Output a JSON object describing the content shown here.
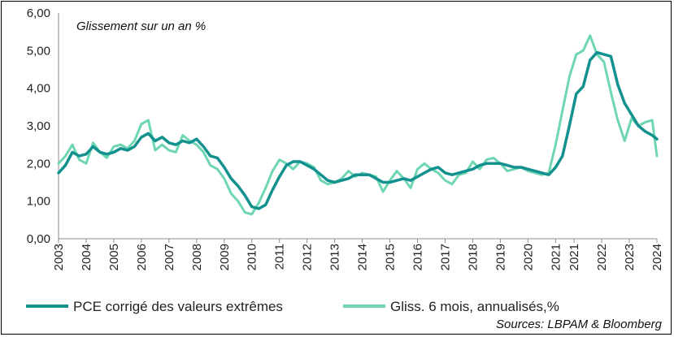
{
  "chart_data": {
    "type": "line",
    "annotation": "Glissement sur un an %",
    "source": "Sources: LBPAM & Bloomberg",
    "ylim": [
      0,
      6
    ],
    "y_ticks": [
      "0,00",
      "1,00",
      "2,00",
      "3,00",
      "4,00",
      "5,00",
      "6,00"
    ],
    "y_tick_values": [
      0,
      1,
      2,
      3,
      4,
      5,
      6
    ],
    "x_range": [
      2003.0,
      2024.67
    ],
    "x_ticks": [
      "2003",
      "2004",
      "2005",
      "2006",
      "2007",
      "2008",
      "2009",
      "2010",
      "2011",
      "2012",
      "2013",
      "2014",
      "2015",
      "2016",
      "2017",
      "2018",
      "2019",
      "2020",
      "2021",
      "2021",
      "2022",
      "2023",
      "2024"
    ],
    "x_tick_values": [
      2003.0,
      2004.0,
      2005.0,
      2006.0,
      2007.0,
      2008.0,
      2009.0,
      2010.0,
      2011.0,
      2012.0,
      2013.0,
      2014.0,
      2015.0,
      2016.0,
      2017.0,
      2018.0,
      2019.0,
      2020.0,
      2021.0,
      2021.67,
      2022.67,
      2023.67,
      2024.67
    ],
    "grid": false,
    "legend_position": "bottom",
    "series": [
      {
        "name": "PCE corrigé des valeurs extrêmes",
        "color": "#13918f",
        "x": [
          2003.0,
          2003.25,
          2003.5,
          2003.75,
          2004.0,
          2004.25,
          2004.5,
          2004.75,
          2005.0,
          2005.25,
          2005.5,
          2005.75,
          2006.0,
          2006.25,
          2006.5,
          2006.75,
          2007.0,
          2007.25,
          2007.5,
          2007.75,
          2008.0,
          2008.25,
          2008.5,
          2008.75,
          2009.0,
          2009.25,
          2009.5,
          2009.75,
          2010.0,
          2010.25,
          2010.5,
          2010.75,
          2011.0,
          2011.25,
          2011.5,
          2011.75,
          2012.0,
          2012.25,
          2012.5,
          2012.75,
          2013.0,
          2013.25,
          2013.5,
          2013.75,
          2014.0,
          2014.25,
          2014.5,
          2014.75,
          2015.0,
          2015.25,
          2015.5,
          2015.75,
          2016.0,
          2016.25,
          2016.5,
          2016.75,
          2017.0,
          2017.25,
          2017.5,
          2017.75,
          2018.0,
          2018.25,
          2018.5,
          2018.75,
          2019.0,
          2019.25,
          2019.5,
          2019.75,
          2020.0,
          2020.25,
          2020.5,
          2020.75,
          2021.0,
          2021.25,
          2021.5,
          2021.75,
          2022.0,
          2022.25,
          2022.5,
          2022.75,
          2023.0,
          2023.25,
          2023.5,
          2023.75,
          2024.0,
          2024.25,
          2024.5,
          2024.67
        ],
        "y": [
          1.75,
          1.95,
          2.3,
          2.2,
          2.25,
          2.45,
          2.3,
          2.25,
          2.3,
          2.4,
          2.35,
          2.45,
          2.7,
          2.8,
          2.6,
          2.7,
          2.55,
          2.5,
          2.6,
          2.55,
          2.65,
          2.45,
          2.2,
          2.15,
          1.9,
          1.6,
          1.4,
          1.15,
          0.85,
          0.8,
          0.9,
          1.3,
          1.65,
          1.95,
          2.05,
          2.05,
          1.95,
          1.85,
          1.7,
          1.55,
          1.5,
          1.55,
          1.6,
          1.7,
          1.7,
          1.7,
          1.6,
          1.5,
          1.5,
          1.55,
          1.6,
          1.55,
          1.65,
          1.75,
          1.85,
          1.9,
          1.75,
          1.7,
          1.75,
          1.8,
          1.85,
          1.95,
          2.0,
          2.0,
          2.0,
          1.95,
          1.9,
          1.9,
          1.85,
          1.8,
          1.75,
          1.7,
          1.9,
          2.2,
          3.0,
          3.85,
          4.05,
          4.75,
          4.95,
          4.9,
          4.85,
          4.1,
          3.6,
          3.3,
          3.0,
          2.85,
          2.75,
          2.65
        ]
      },
      {
        "name": "Gliss. 6 mois, annualisés,%",
        "color": "#6fd6b4",
        "x": [
          2003.0,
          2003.25,
          2003.5,
          2003.75,
          2004.0,
          2004.25,
          2004.5,
          2004.75,
          2005.0,
          2005.25,
          2005.5,
          2005.75,
          2006.0,
          2006.25,
          2006.5,
          2006.75,
          2007.0,
          2007.25,
          2007.5,
          2007.75,
          2008.0,
          2008.25,
          2008.5,
          2008.75,
          2009.0,
          2009.25,
          2009.5,
          2009.75,
          2010.0,
          2010.25,
          2010.5,
          2010.75,
          2011.0,
          2011.25,
          2011.5,
          2011.75,
          2012.0,
          2012.25,
          2012.5,
          2012.75,
          2013.0,
          2013.25,
          2013.5,
          2013.75,
          2014.0,
          2014.25,
          2014.5,
          2014.75,
          2015.0,
          2015.25,
          2015.5,
          2015.75,
          2016.0,
          2016.25,
          2016.5,
          2016.75,
          2017.0,
          2017.25,
          2017.5,
          2017.75,
          2018.0,
          2018.25,
          2018.5,
          2018.75,
          2019.0,
          2019.25,
          2019.5,
          2019.75,
          2020.0,
          2020.25,
          2020.5,
          2020.75,
          2021.0,
          2021.25,
          2021.5,
          2021.75,
          2022.0,
          2022.25,
          2022.5,
          2022.75,
          2023.0,
          2023.25,
          2023.5,
          2023.75,
          2024.0,
          2024.25,
          2024.5,
          2024.67
        ],
        "y": [
          2.0,
          2.2,
          2.5,
          2.1,
          2.0,
          2.55,
          2.3,
          2.15,
          2.45,
          2.5,
          2.4,
          2.6,
          3.05,
          3.15,
          2.35,
          2.5,
          2.35,
          2.3,
          2.75,
          2.6,
          2.5,
          2.3,
          1.95,
          1.85,
          1.6,
          1.2,
          1.0,
          0.7,
          0.65,
          0.95,
          1.35,
          1.8,
          2.1,
          2.0,
          1.85,
          2.05,
          2.0,
          1.9,
          1.55,
          1.45,
          1.5,
          1.6,
          1.8,
          1.65,
          1.75,
          1.7,
          1.65,
          1.25,
          1.55,
          1.8,
          1.6,
          1.35,
          1.85,
          2.0,
          1.85,
          1.75,
          1.55,
          1.45,
          1.7,
          1.75,
          2.05,
          1.85,
          2.1,
          2.15,
          2.0,
          1.8,
          1.85,
          1.9,
          1.8,
          1.75,
          1.7,
          1.75,
          2.5,
          3.4,
          4.3,
          4.9,
          5.0,
          5.4,
          4.9,
          4.7,
          3.9,
          3.15,
          2.6,
          3.2,
          3.0,
          3.1,
          3.15,
          2.2
        ]
      }
    ]
  }
}
